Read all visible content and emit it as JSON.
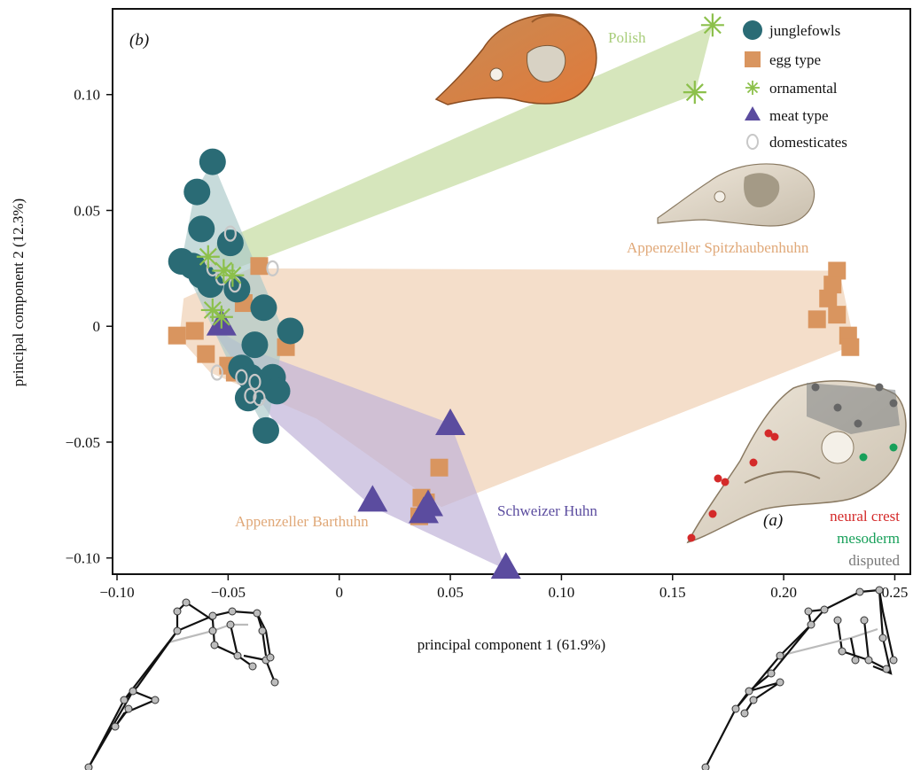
{
  "chart_data": {
    "type": "scatter",
    "panel_label": "(b)",
    "xlabel": "principal component 1 (61.9%)",
    "ylabel": "principal component 2 (12.3%)",
    "xlim": [
      -0.102,
      0.257
    ],
    "ylim": [
      -0.107,
      0.137
    ],
    "x_ticks": [
      -0.1,
      -0.05,
      0,
      0.05,
      0.1,
      0.15,
      0.2,
      0.25
    ],
    "x_tick_labels": [
      "−0.10",
      "−0.05",
      "0",
      "0.05",
      "0.10",
      "0.15",
      "0.20",
      "0.25"
    ],
    "y_ticks": [
      -0.1,
      -0.05,
      0,
      0.05,
      0.1
    ],
    "y_tick_labels": [
      "−0.10",
      "−0.05",
      "0",
      "0.05",
      "0.10"
    ],
    "grid": false,
    "legend_position": "top-right",
    "legend": [
      {
        "label": "junglefowls",
        "marker": "circle",
        "color": "#2a6b75"
      },
      {
        "label": "egg type",
        "marker": "square",
        "color": "#d9955f"
      },
      {
        "label": "ornamental",
        "marker": "asterisk",
        "color": "#8cc04b"
      },
      {
        "label": "meat type",
        "marker": "triangle",
        "color": "#5b4c9f"
      },
      {
        "label": "domesticates",
        "marker": "ring",
        "color": "#c8c8c8"
      }
    ],
    "colors": {
      "junglefowls": "#2a6b75",
      "egg_type": "#d9955f",
      "ornamental": "#8cc04b",
      "meat_type": "#5b4c9f",
      "domesticates": "#c8c8c8",
      "polish_hull": "#cfe2b0",
      "egg_hull": "#f0d3b8",
      "meat_hull": "#c0b3d8",
      "jungle_hull": "#a9c8c8",
      "neural_crest": "#d42a2a",
      "mesoderm": "#18a05a",
      "disputed": "#777777"
    },
    "group_labels": [
      {
        "text": "Polish",
        "color": "#a8cd7a"
      },
      {
        "text": "Appenzeller Spitzhaubenhuhn",
        "color": "#e0a878"
      },
      {
        "text": "Appenzeller Barthuhn",
        "color": "#e0a878"
      },
      {
        "text": "Schweizer Huhn",
        "color": "#5b4c9f"
      }
    ],
    "inset": {
      "panel_label": "(a)",
      "legend": [
        {
          "label": "neural crest",
          "color": "#d42a2a"
        },
        {
          "label": "mesoderm",
          "color": "#18a05a"
        },
        {
          "label": "disputed",
          "color": "#777777"
        }
      ]
    },
    "hulls": {
      "polish": [
        [
          -0.055,
          0.036
        ],
        [
          0.168,
          0.13
        ],
        [
          0.16,
          0.1
        ],
        [
          -0.06,
          0.02
        ]
      ],
      "egg": [
        [
          -0.07,
          0.012
        ],
        [
          -0.04,
          0.025
        ],
        [
          0.225,
          0.024
        ],
        [
          0.232,
          -0.008
        ],
        [
          0.046,
          -0.078
        ],
        [
          -0.01,
          -0.04
        ],
        [
          -0.058,
          -0.02
        ],
        [
          -0.072,
          -0.005
        ]
      ],
      "meat": [
        [
          -0.058,
          0.0
        ],
        [
          -0.04,
          -0.01
        ],
        [
          0.05,
          -0.042
        ],
        [
          0.075,
          -0.105
        ],
        [
          0.015,
          -0.078
        ],
        [
          -0.03,
          -0.04
        ]
      ],
      "jungle": [
        [
          -0.057,
          0.071
        ],
        [
          -0.065,
          0.058
        ],
        [
          -0.071,
          0.028
        ],
        [
          -0.05,
          -0.015
        ],
        [
          -0.033,
          -0.045
        ],
        [
          -0.028,
          -0.022
        ],
        [
          -0.025,
          -0.002
        ],
        [
          -0.037,
          0.025
        ]
      ]
    },
    "series": [
      {
        "name": "junglefowls",
        "marker": "circle",
        "points": [
          [
            -0.057,
            0.071
          ],
          [
            -0.064,
            0.058
          ],
          [
            -0.062,
            0.042
          ],
          [
            -0.049,
            0.036
          ],
          [
            -0.071,
            0.028
          ],
          [
            -0.066,
            0.026
          ],
          [
            -0.062,
            0.022
          ],
          [
            -0.058,
            0.018
          ],
          [
            -0.046,
            0.016
          ],
          [
            -0.034,
            0.008
          ],
          [
            -0.022,
            -0.002
          ],
          [
            -0.038,
            -0.008
          ],
          [
            -0.044,
            -0.018
          ],
          [
            -0.04,
            -0.022
          ],
          [
            -0.03,
            -0.022
          ],
          [
            -0.036,
            -0.026
          ],
          [
            -0.028,
            -0.028
          ],
          [
            -0.041,
            -0.031
          ],
          [
            -0.033,
            -0.045
          ]
        ]
      },
      {
        "name": "egg type",
        "points": [
          [
            -0.036,
            0.026
          ],
          [
            -0.073,
            -0.004
          ],
          [
            -0.065,
            -0.002
          ],
          [
            -0.06,
            -0.012
          ],
          [
            -0.05,
            -0.017
          ],
          [
            -0.043,
            0.01
          ],
          [
            -0.047,
            -0.02
          ],
          [
            -0.024,
            -0.009
          ],
          [
            0.045,
            -0.061
          ],
          [
            0.037,
            -0.074
          ],
          [
            0.039,
            -0.076
          ],
          [
            0.036,
            -0.082
          ],
          [
            0.224,
            0.024
          ],
          [
            0.222,
            0.018
          ],
          [
            0.22,
            0.012
          ],
          [
            0.224,
            0.005
          ],
          [
            0.215,
            0.003
          ],
          [
            0.229,
            -0.004
          ],
          [
            0.23,
            -0.009
          ]
        ]
      },
      {
        "name": "ornamental",
        "points": [
          [
            0.168,
            0.13
          ],
          [
            0.16,
            0.101
          ],
          [
            -0.059,
            0.03
          ],
          [
            -0.052,
            0.024
          ],
          [
            -0.048,
            0.022
          ],
          [
            -0.057,
            0.007
          ],
          [
            -0.053,
            0.004
          ]
        ]
      },
      {
        "name": "meat type",
        "points": [
          [
            -0.053,
            0.001
          ],
          [
            0.05,
            -0.042
          ],
          [
            0.015,
            -0.075
          ],
          [
            0.04,
            -0.077
          ],
          [
            0.038,
            -0.08
          ],
          [
            0.075,
            -0.104
          ]
        ]
      },
      {
        "name": "domesticates",
        "points": [
          [
            -0.049,
            0.04
          ],
          [
            -0.058,
            0.029
          ],
          [
            -0.03,
            0.025
          ],
          [
            -0.053,
            0.021
          ],
          [
            -0.047,
            0.018
          ],
          [
            -0.057,
            0.025
          ],
          [
            -0.055,
            -0.02
          ],
          [
            -0.044,
            -0.022
          ],
          [
            -0.04,
            -0.03
          ],
          [
            -0.036,
            -0.031
          ],
          [
            -0.038,
            -0.024
          ]
        ]
      }
    ]
  }
}
